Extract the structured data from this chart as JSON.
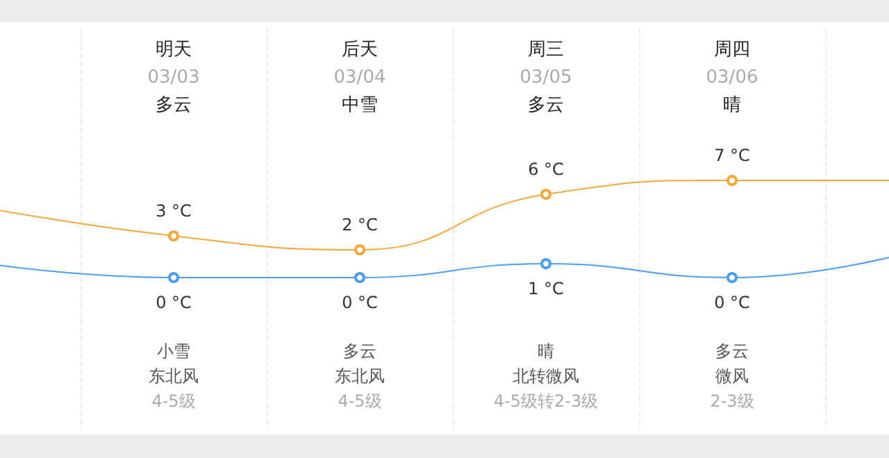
{
  "chart_data": {
    "type": "line",
    "categories": [
      null,
      "明天\n03/03\n多云",
      "后天\n03/04\n中雪",
      "周三\n03/05\n多云",
      "周四\n03/06\n晴",
      null
    ],
    "series": [
      {
        "color": "#f5a83a",
        "values": [
          5,
          3,
          2,
          6,
          7,
          7
        ],
        "value_labels": [
          null,
          "3 °C",
          "2 °C",
          "6 °C",
          "7 °C",
          null
        ]
      },
      {
        "color": "#4a9ef5",
        "values": [
          1,
          0,
          0,
          1,
          0,
          2
        ],
        "value_labels": [
          null,
          "0 °C",
          "0 °C",
          "1 °C",
          "0 °C",
          null
        ]
      }
    ],
    "annotations": [
      "小雪",
      "东北风",
      "4-5级",
      "多云",
      "东北风",
      "4-5级",
      "晴",
      "北转微风",
      "4-5级转2-3级",
      "多云",
      "微风",
      "2-3级"
    ],
    "grid": "x",
    "marker": "circle",
    "tick_labels": "x"
  }
}
